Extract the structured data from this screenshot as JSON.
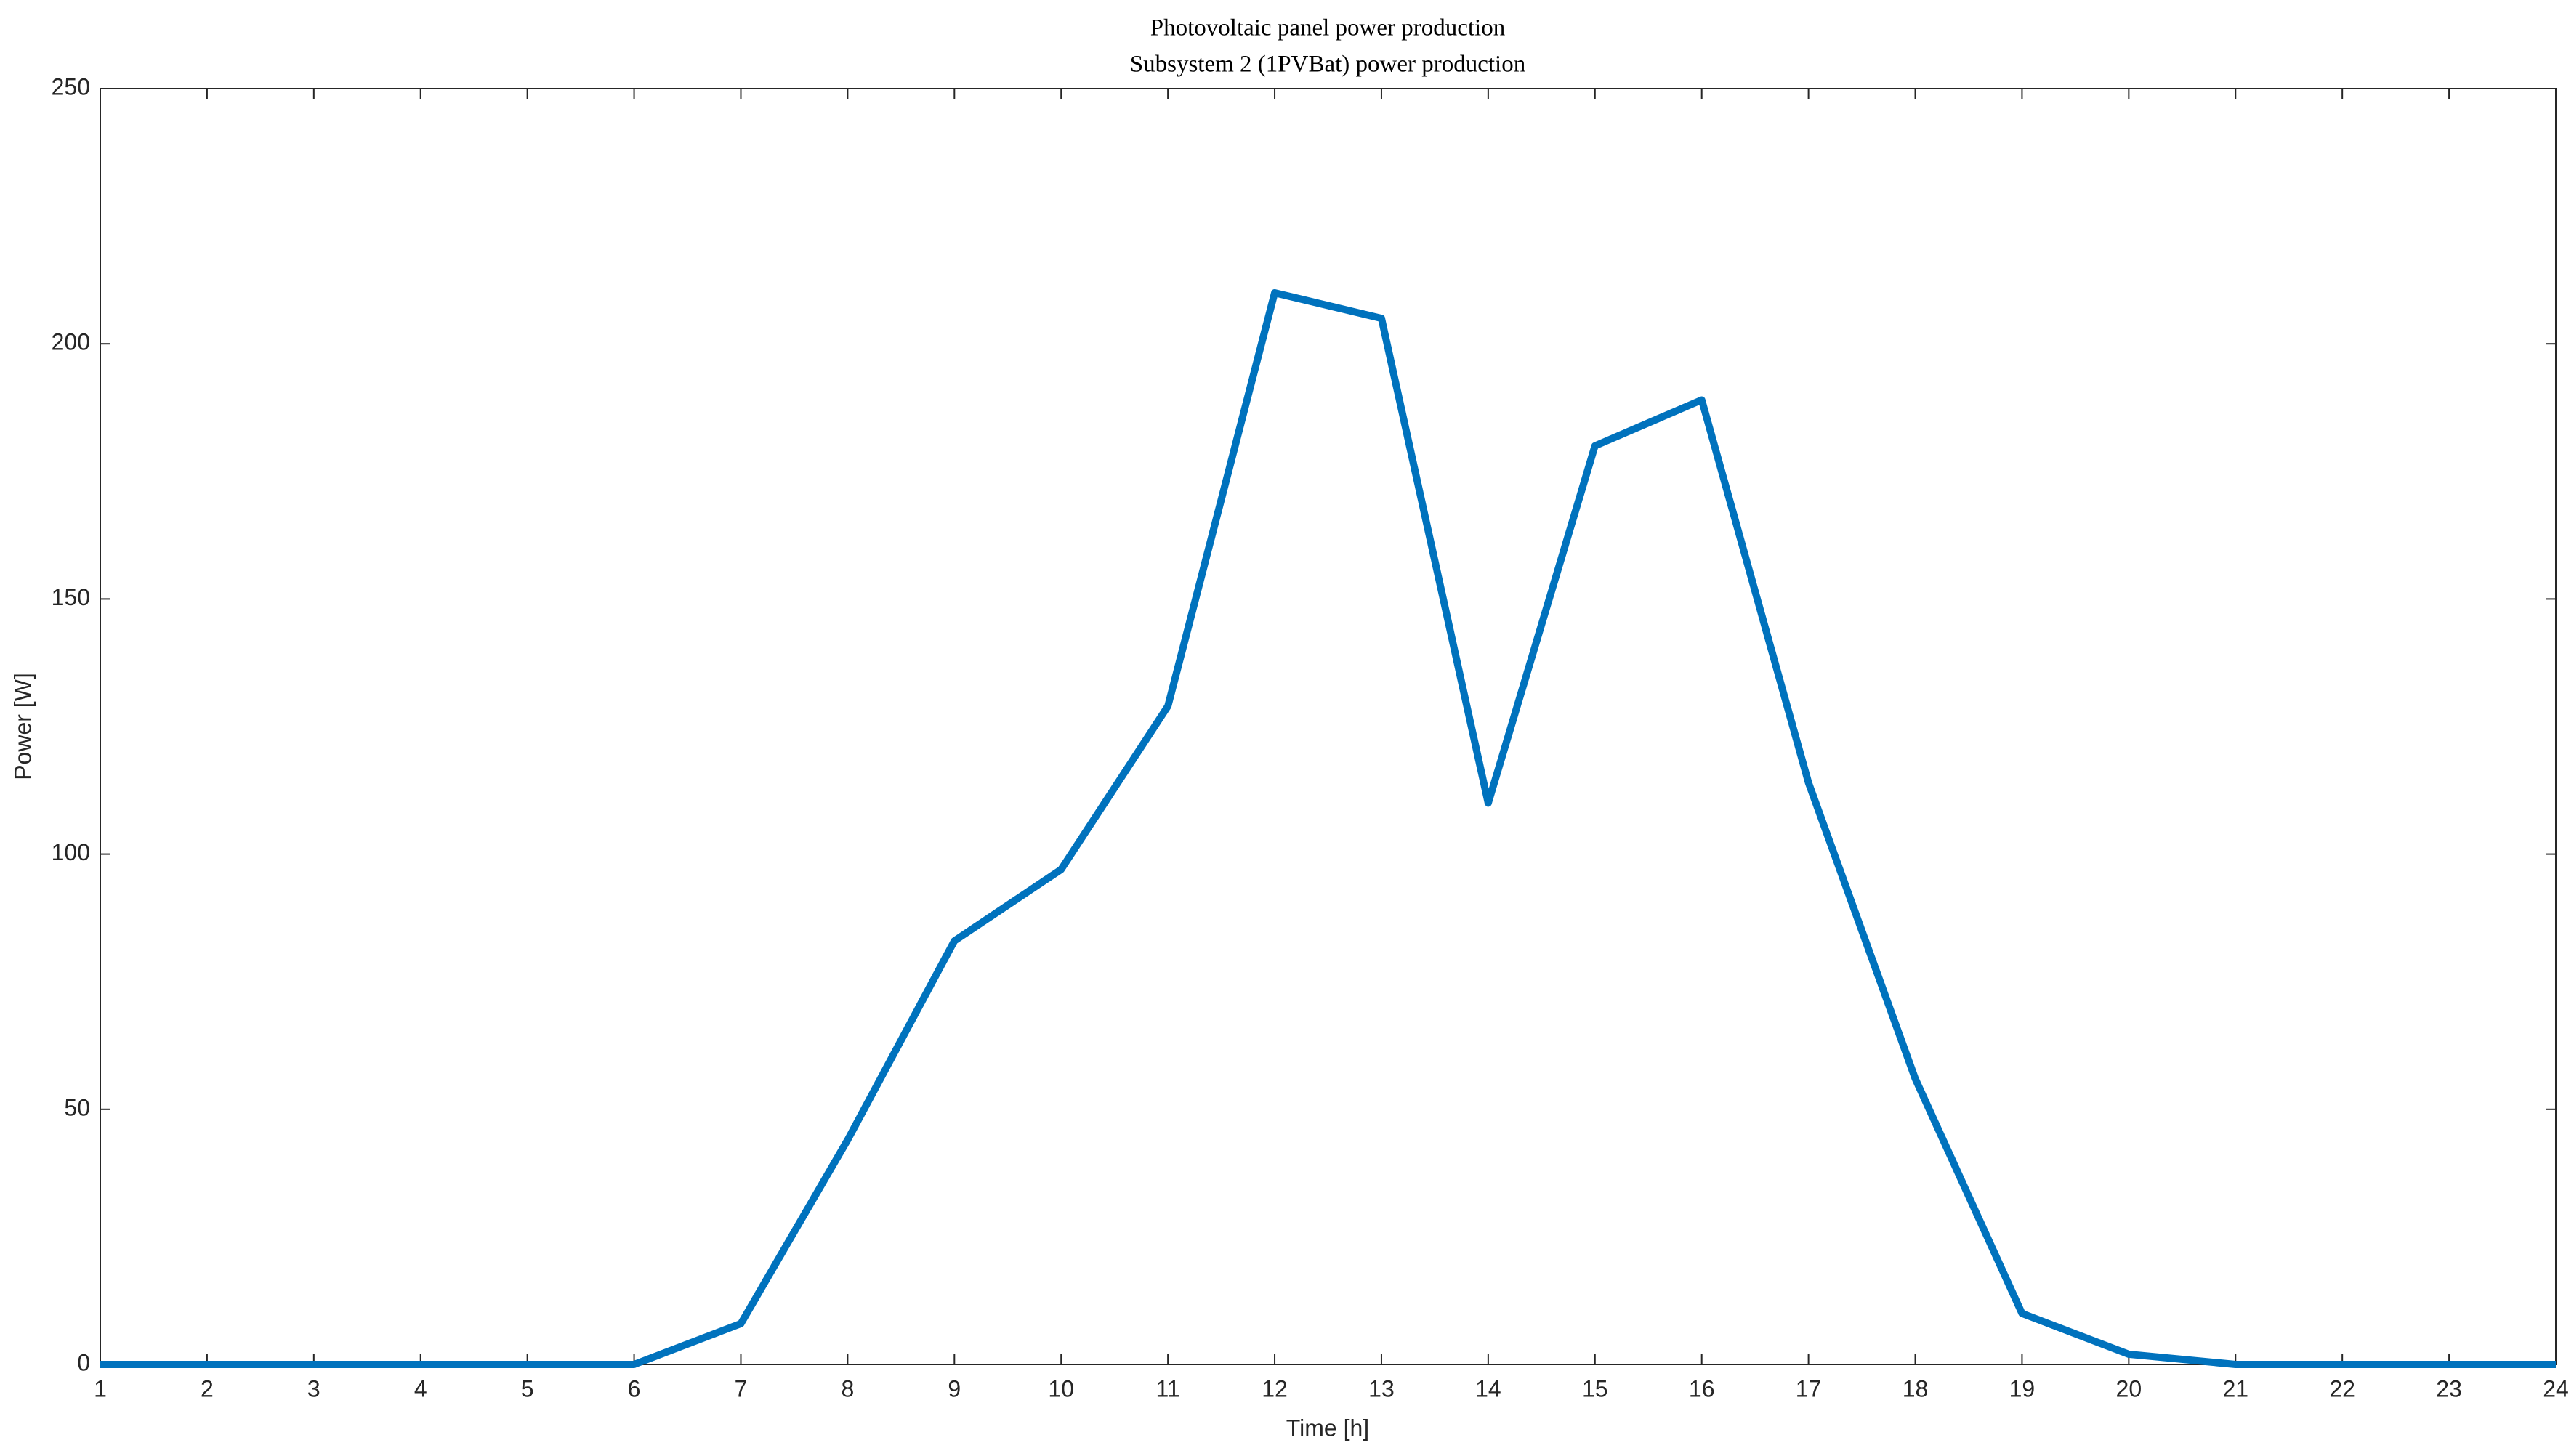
{
  "chart_data": {
    "type": "line",
    "title": [
      "Photovoltaic panel power production",
      "Subsystem 2 (1PVBat) power production"
    ],
    "x_label": "Time [h]",
    "y_label": "Power [W]",
    "x": [
      1,
      2,
      3,
      4,
      5,
      6,
      7,
      8,
      9,
      10,
      11,
      12,
      13,
      14,
      15,
      16,
      17,
      18,
      19,
      20,
      21,
      22,
      23,
      24
    ],
    "values": [
      0,
      0,
      0,
      0,
      0,
      0,
      8,
      44,
      83,
      97,
      129,
      210,
      205,
      110,
      180,
      189,
      114,
      56,
      10,
      2,
      0,
      0,
      0,
      0
    ],
    "color": "#0072bd",
    "xlim": [
      1,
      24
    ],
    "xticks": [
      1,
      2,
      3,
      4,
      5,
      6,
      7,
      8,
      9,
      10,
      11,
      12,
      13,
      14,
      15,
      16,
      17,
      18,
      19,
      20,
      21,
      22,
      23,
      24
    ],
    "ylim": [
      0,
      250
    ],
    "yticks": [
      0,
      50,
      100,
      150,
      200,
      250
    ],
    "grid": false
  }
}
